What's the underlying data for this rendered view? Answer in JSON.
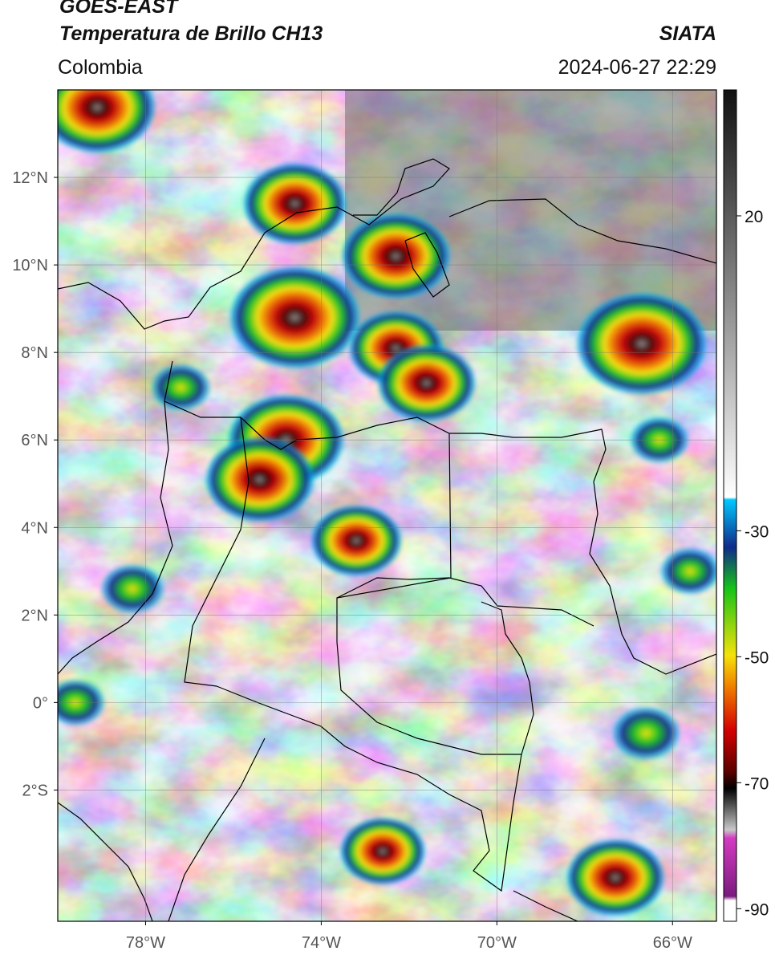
{
  "header": {
    "satellite": "GOES-EAST",
    "product": "Temperatura de Brillo CH13",
    "region": "Colombia",
    "source": "SIATA",
    "datetime": "2024-06-27 22:29"
  },
  "map": {
    "projection": "PlateCarree",
    "extent": {
      "lon_min": -80.0,
      "lon_max": -65.0,
      "lat_min": -5.0,
      "lat_max": 14.0
    },
    "gridlines": true,
    "lat_ticks": [
      {
        "lat": 12,
        "label": "12°N"
      },
      {
        "lat": 10,
        "label": "10°N"
      },
      {
        "lat": 8,
        "label": "8°N"
      },
      {
        "lat": 6,
        "label": "6°N"
      },
      {
        "lat": 4,
        "label": "4°N"
      },
      {
        "lat": 2,
        "label": "2°N"
      },
      {
        "lat": 0,
        "label": "0°"
      },
      {
        "lat": -2,
        "label": "2°S"
      }
    ],
    "lon_ticks": [
      {
        "lon": -78,
        "label": "78°W"
      },
      {
        "lon": -74,
        "label": "74°W"
      },
      {
        "lon": -70,
        "label": "70°W"
      },
      {
        "lon": -66,
        "label": "66°W"
      }
    ],
    "convective_cells": [
      {
        "lon": -79.1,
        "lat": 13.6,
        "min_temp": -72
      },
      {
        "lon": -74.6,
        "lat": 11.4,
        "min_temp": -65
      },
      {
        "lon": -72.3,
        "lat": 10.2,
        "min_temp": -68
      },
      {
        "lon": -74.6,
        "lat": 8.8,
        "min_temp": -80
      },
      {
        "lon": -72.3,
        "lat": 8.1,
        "min_temp": -60
      },
      {
        "lon": -71.6,
        "lat": 7.3,
        "min_temp": -62
      },
      {
        "lon": -66.7,
        "lat": 8.2,
        "min_temp": -80
      },
      {
        "lon": -74.8,
        "lat": 6.0,
        "min_temp": -72
      },
      {
        "lon": -75.4,
        "lat": 5.1,
        "min_temp": -68
      },
      {
        "lon": -73.2,
        "lat": 3.7,
        "min_temp": -58
      },
      {
        "lon": -78.3,
        "lat": 2.6,
        "min_temp": -42
      },
      {
        "lon": -66.3,
        "lat": 6.0,
        "min_temp": -38
      },
      {
        "lon": -65.6,
        "lat": 3.0,
        "min_temp": -35
      },
      {
        "lon": -66.6,
        "lat": -0.7,
        "min_temp": -45
      },
      {
        "lon": -72.6,
        "lat": -3.4,
        "min_temp": -55
      },
      {
        "lon": -67.3,
        "lat": -4.0,
        "min_temp": -62
      },
      {
        "lon": -79.6,
        "lat": 0.0,
        "min_temp": -40
      },
      {
        "lon": -77.2,
        "lat": 7.2,
        "min_temp": -40
      }
    ]
  },
  "colorbar": {
    "vmin": -92,
    "vmax": 40,
    "tick_values": [
      20,
      -30,
      -50,
      -70,
      -90
    ],
    "tick_labels": [
      "20",
      "-30",
      "-50",
      "-70",
      "-90"
    ],
    "colors": {
      "warm_top": "#111111",
      "warm_mid": "#888888",
      "cold_start": "#ffffff",
      "cyan": "#00c8ff",
      "navy": "#102a8a",
      "green": "#17c417",
      "yellow": "#f5e20a",
      "orange": "#f07a00",
      "red": "#d40000",
      "darkred": "#5a0000",
      "black": "#000000",
      "magenta": "#d33bc2",
      "purple": "#7a1a7e"
    }
  }
}
